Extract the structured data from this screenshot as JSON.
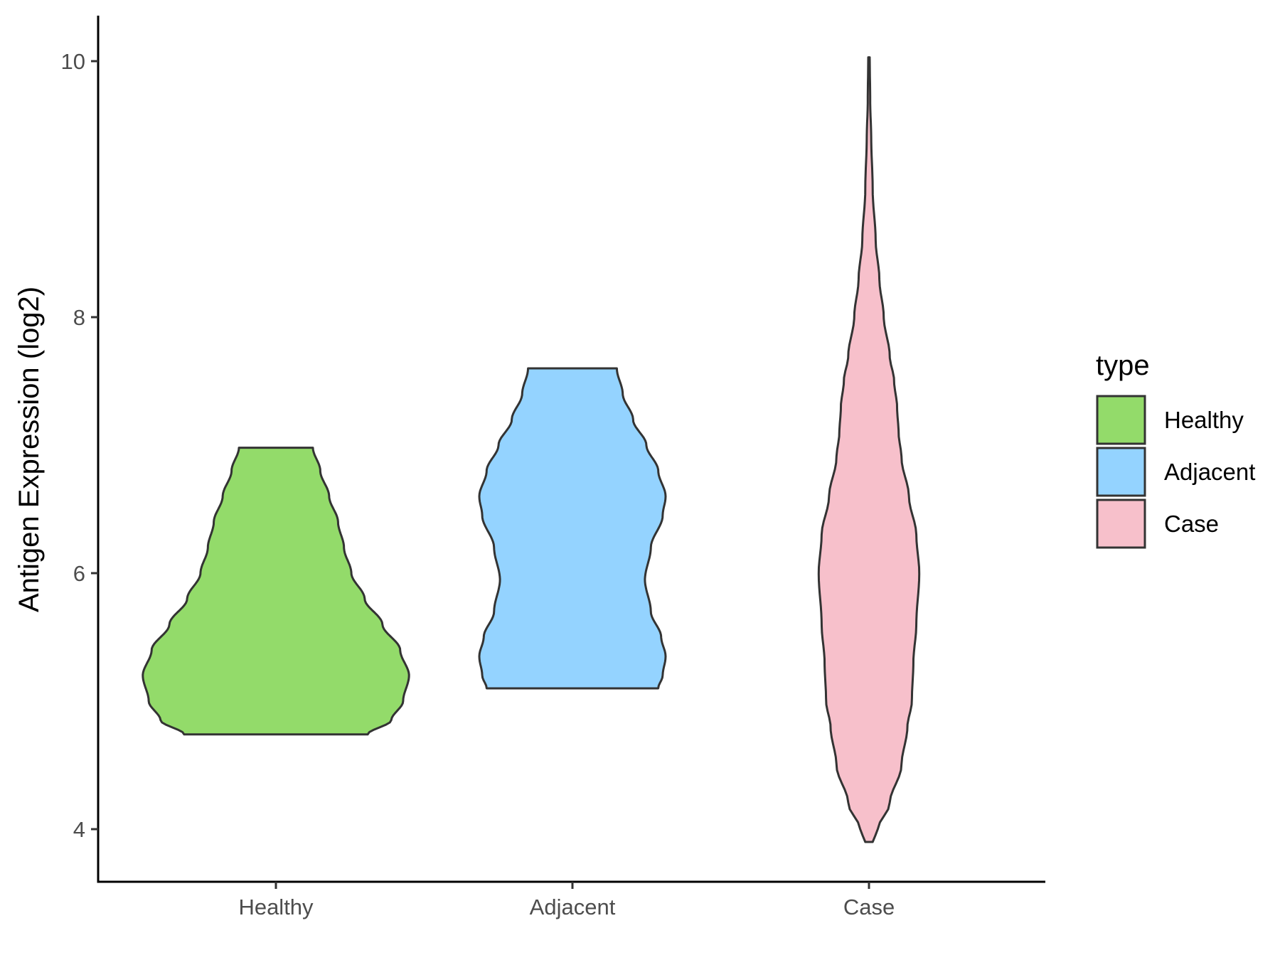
{
  "chart_data": {
    "type": "violin",
    "xlabel": "",
    "ylabel": "Antigen Expression (log2)",
    "ylim": [
      3.35,
      10.35
    ],
    "yticks": [
      "4",
      "6",
      "8",
      "10"
    ],
    "categories": [
      "Healthy",
      "Adjacent",
      "Case"
    ],
    "legend": {
      "title": "type",
      "position": "right"
    },
    "series": [
      {
        "name": "Healthy",
        "color": "#93DB6A",
        "min": 4.74,
        "max": 6.98,
        "profile": [
          [
            4.74,
            0.62
          ],
          [
            4.85,
            0.78
          ],
          [
            5.0,
            0.86
          ],
          [
            5.2,
            0.9
          ],
          [
            5.4,
            0.84
          ],
          [
            5.6,
            0.72
          ],
          [
            5.8,
            0.6
          ],
          [
            6.0,
            0.51
          ],
          [
            6.2,
            0.46
          ],
          [
            6.4,
            0.42
          ],
          [
            6.6,
            0.36
          ],
          [
            6.8,
            0.3
          ],
          [
            6.98,
            0.25
          ]
        ]
      },
      {
        "name": "Adjacent",
        "color": "#94D3FF",
        "min": 5.1,
        "max": 7.6,
        "profile": [
          [
            5.1,
            0.58
          ],
          [
            5.2,
            0.61
          ],
          [
            5.35,
            0.63
          ],
          [
            5.5,
            0.6
          ],
          [
            5.7,
            0.53
          ],
          [
            5.95,
            0.49
          ],
          [
            6.2,
            0.53
          ],
          [
            6.45,
            0.61
          ],
          [
            6.6,
            0.63
          ],
          [
            6.8,
            0.58
          ],
          [
            7.0,
            0.5
          ],
          [
            7.2,
            0.41
          ],
          [
            7.4,
            0.34
          ],
          [
            7.6,
            0.3
          ]
        ]
      },
      {
        "name": "Case",
        "color": "#F7C0CB",
        "min": 3.9,
        "max": 10.03,
        "profile": [
          [
            3.9,
            0.025
          ],
          [
            4.0,
            0.06
          ],
          [
            4.2,
            0.14
          ],
          [
            4.5,
            0.22
          ],
          [
            4.8,
            0.26
          ],
          [
            5.0,
            0.29
          ],
          [
            5.3,
            0.3
          ],
          [
            5.6,
            0.32
          ],
          [
            6.0,
            0.34
          ],
          [
            6.3,
            0.32
          ],
          [
            6.6,
            0.27
          ],
          [
            6.9,
            0.22
          ],
          [
            7.1,
            0.2
          ],
          [
            7.3,
            0.19
          ],
          [
            7.5,
            0.17
          ],
          [
            7.7,
            0.14
          ],
          [
            8.0,
            0.1
          ],
          [
            8.3,
            0.07
          ],
          [
            8.6,
            0.045
          ],
          [
            9.0,
            0.025
          ],
          [
            9.4,
            0.015
          ],
          [
            9.7,
            0.008
          ],
          [
            10.03,
            0.005
          ]
        ]
      }
    ]
  }
}
